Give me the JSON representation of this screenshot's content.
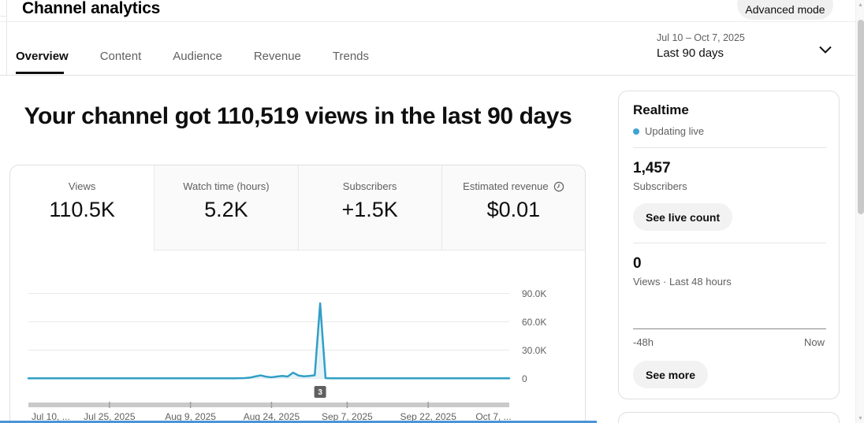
{
  "header": {
    "title": "Channel analytics",
    "advanced_mode_label": "Advanced mode"
  },
  "tabs": [
    {
      "label": "Overview",
      "active": true
    },
    {
      "label": "Content",
      "active": false
    },
    {
      "label": "Audience",
      "active": false
    },
    {
      "label": "Revenue",
      "active": false
    },
    {
      "label": "Trends",
      "active": false
    }
  ],
  "date_selector": {
    "range": "Jul 10 – Oct 7, 2025",
    "preset": "Last 90 days"
  },
  "headline": "Your channel got 110,519 views in the last 90 days",
  "metric_cards": [
    {
      "label": "Views",
      "value": "110.5K",
      "active": true
    },
    {
      "label": "Watch time (hours)",
      "value": "5.2K",
      "active": false
    },
    {
      "label": "Subscribers",
      "value": "+1.5K",
      "active": false
    },
    {
      "label": "Estimated revenue",
      "value": "$0.01",
      "active": false,
      "icon": "clock-icon"
    }
  ],
  "chart_data": {
    "type": "area",
    "metric": "Views",
    "x_start": "Jul 10, 2025",
    "x_end": "Oct 7, 2025",
    "ylim": [
      0,
      90000
    ],
    "grid": true,
    "legend": false,
    "y_ticks": [
      {
        "value": 0,
        "label": "0"
      },
      {
        "value": 30000,
        "label": "30.0K"
      },
      {
        "value": 60000,
        "label": "60.0K"
      },
      {
        "value": 90000,
        "label": "90.0K"
      }
    ],
    "x_ticks": [
      {
        "day": 0,
        "label": "Jul 10, ..."
      },
      {
        "day": 15,
        "label": "Jul 25, 2025"
      },
      {
        "day": 30,
        "label": "Aug 9, 2025"
      },
      {
        "day": 45,
        "label": "Aug 24, 2025"
      },
      {
        "day": 59,
        "label": "Sep 7, 2025"
      },
      {
        "day": 74,
        "label": "Sep 22, 2025"
      },
      {
        "day": 89,
        "label": "Oct 7, ..."
      }
    ],
    "points": [
      {
        "day": 0,
        "views": 200
      },
      {
        "day": 38,
        "views": 200
      },
      {
        "day": 40,
        "views": 400
      },
      {
        "day": 41,
        "views": 900
      },
      {
        "day": 42,
        "views": 2200
      },
      {
        "day": 43,
        "views": 3300
      },
      {
        "day": 44,
        "views": 1900
      },
      {
        "day": 45,
        "views": 1300
      },
      {
        "day": 46,
        "views": 2100
      },
      {
        "day": 47,
        "views": 2700
      },
      {
        "day": 48,
        "views": 2100
      },
      {
        "day": 49,
        "views": 6200
      },
      {
        "day": 50,
        "views": 3100
      },
      {
        "day": 51,
        "views": 2300
      },
      {
        "day": 52,
        "views": 2700
      },
      {
        "day": 53,
        "views": 3400
      },
      {
        "day": 54,
        "views": 79500
      },
      {
        "day": 55,
        "views": 400
      },
      {
        "day": 56,
        "views": 250
      },
      {
        "day": 89,
        "views": 250
      }
    ],
    "annotation": {
      "label": "3",
      "day": 54
    },
    "line_color": "#319fc5",
    "fill_color": "#e8f3f8"
  },
  "realtime": {
    "title": "Realtime",
    "status": "Updating live",
    "subscribers_value": "1,457",
    "subscribers_label": "Subscribers",
    "live_count_button": "See live count",
    "views_value": "0",
    "views_label": "Views · Last 48 hours",
    "axis_left": "-48h",
    "axis_right": "Now",
    "see_more_button": "See more"
  },
  "colors": {
    "chart_line": "#319fc5",
    "chart_fill": "#e8f3f8",
    "live_dot": "#3ea2d4",
    "annotation_bg": "#606060",
    "bottom_accent": "#4a94d8"
  }
}
